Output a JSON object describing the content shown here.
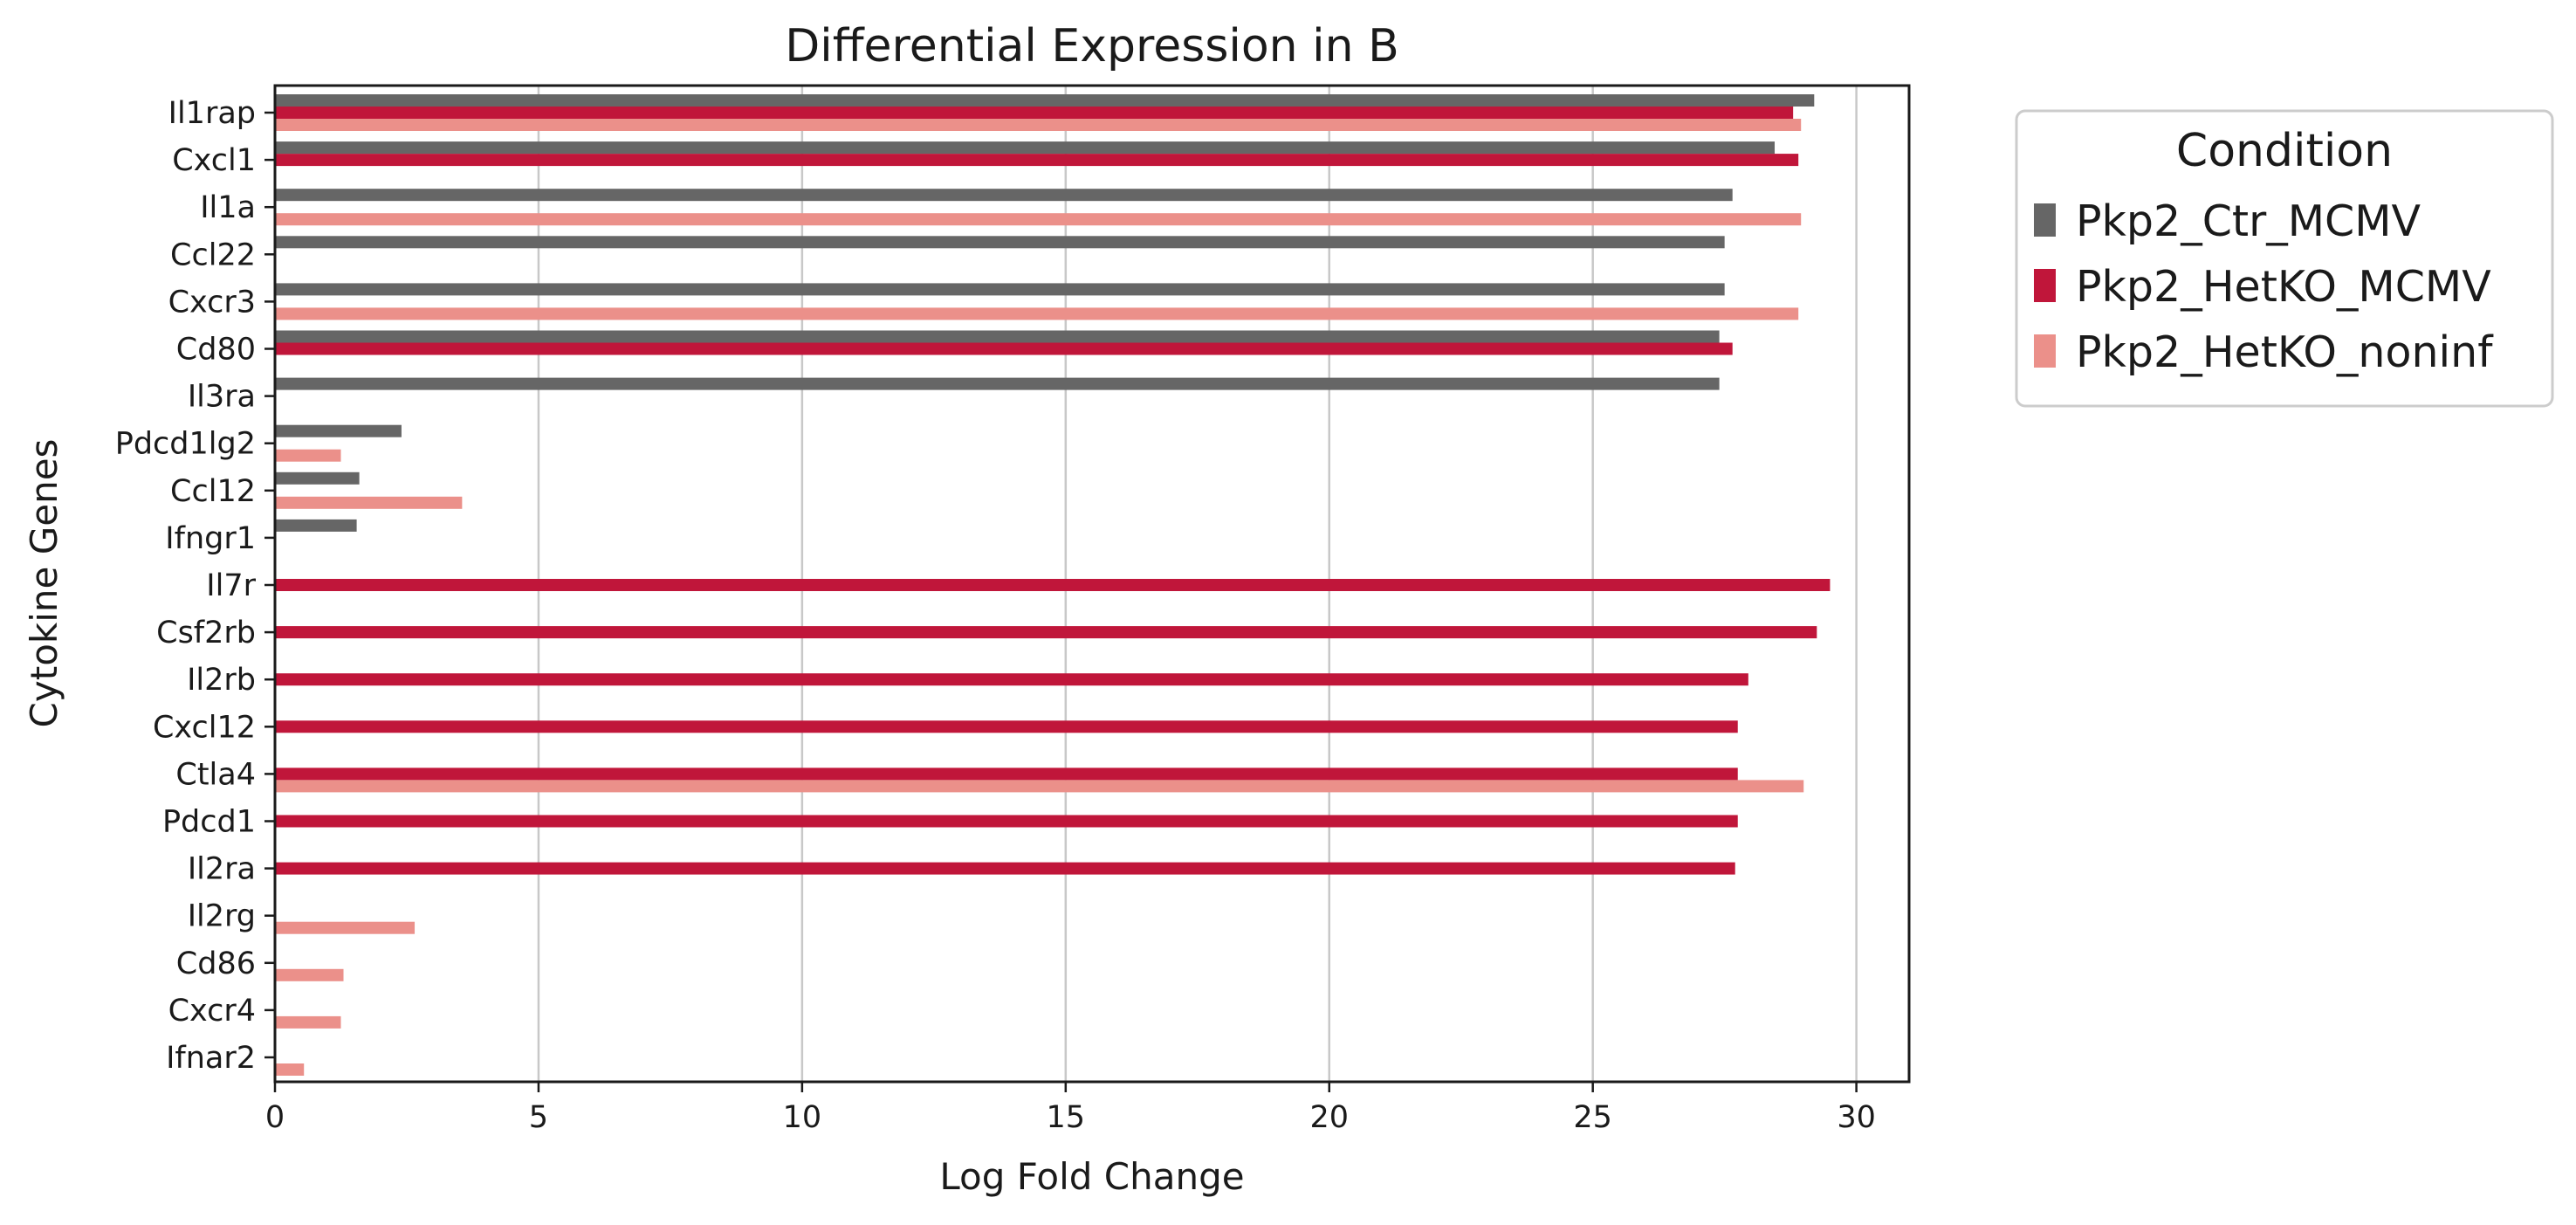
{
  "chart_data": {
    "type": "bar",
    "orientation": "horizontal",
    "title": "Differential Expression in B",
    "xlabel": "Log Fold Change",
    "ylabel": "Cytokine Genes",
    "xlim": [
      0,
      31
    ],
    "xticks": [
      0,
      5,
      10,
      15,
      20,
      25,
      30
    ],
    "grid": "vertical",
    "legend": {
      "title": "Condition",
      "placement": "outside-top-right"
    },
    "categories": [
      "Il1rap",
      "Cxcl1",
      "Il1a",
      "Ccl22",
      "Cxcr3",
      "Cd80",
      "Il3ra",
      "Pdcd1lg2",
      "Ccl12",
      "Ifngr1",
      "Il7r",
      "Csf2rb",
      "Il2rb",
      "Cxcl12",
      "Ctla4",
      "Pdcd1",
      "Il2ra",
      "Il2rg",
      "Cd86",
      "Cxcr4",
      "Ifnar2"
    ],
    "series": [
      {
        "name": "Pkp2_Ctr_MCMV",
        "color": "#666666",
        "values": [
          29.2,
          28.45,
          27.65,
          27.5,
          27.5,
          27.4,
          27.4,
          2.4,
          1.6,
          1.55,
          null,
          null,
          null,
          null,
          null,
          null,
          null,
          null,
          null,
          null,
          null
        ]
      },
      {
        "name": "Pkp2_HetKO_MCMV",
        "color": "#c0163a",
        "values": [
          28.8,
          28.9,
          null,
          null,
          null,
          27.65,
          null,
          null,
          null,
          null,
          29.5,
          29.25,
          27.95,
          27.75,
          27.75,
          27.75,
          27.7,
          null,
          null,
          null,
          null
        ]
      },
      {
        "name": "Pkp2_HetKO_noninf",
        "color": "#eb908a",
        "values": [
          28.95,
          null,
          28.95,
          null,
          28.9,
          null,
          null,
          1.25,
          3.55,
          null,
          null,
          null,
          null,
          null,
          29.0,
          null,
          null,
          2.65,
          1.3,
          1.25,
          0.55
        ]
      }
    ]
  }
}
